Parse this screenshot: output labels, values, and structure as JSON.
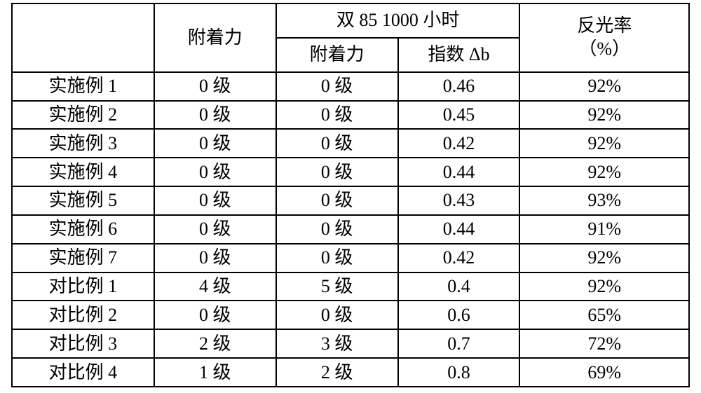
{
  "headers": {
    "adhesion": "附着力",
    "condition": "双 85 1000 小时",
    "sub_adhesion": "附着力",
    "sub_index": "指数 Δb",
    "reflectivity_l1": "反光率",
    "reflectivity_l2": "（%）"
  },
  "rows": [
    {
      "label": "实施例 1",
      "adh": "0 级",
      "sub_adh": "0 级",
      "idx": "0.46",
      "refl": "92%"
    },
    {
      "label": "实施例 2",
      "adh": "0 级",
      "sub_adh": "0 级",
      "idx": "0.45",
      "refl": "92%"
    },
    {
      "label": "实施例 3",
      "adh": "0 级",
      "sub_adh": "0 级",
      "idx": "0.42",
      "refl": "92%"
    },
    {
      "label": "实施例 4",
      "adh": "0 级",
      "sub_adh": "0 级",
      "idx": "0.44",
      "refl": "92%"
    },
    {
      "label": "实施例 5",
      "adh": "0 级",
      "sub_adh": "0 级",
      "idx": "0.43",
      "refl": "93%"
    },
    {
      "label": "实施例 6",
      "adh": "0 级",
      "sub_adh": "0 级",
      "idx": "0.44",
      "refl": "91%"
    },
    {
      "label": "实施例 7",
      "adh": "0 级",
      "sub_adh": "0 级",
      "idx": "0.42",
      "refl": "92%"
    },
    {
      "label": "对比例 1",
      "adh": "4 级",
      "sub_adh": "5 级",
      "idx": "0.4",
      "refl": "92%"
    },
    {
      "label": "对比例 2",
      "adh": "0 级",
      "sub_adh": "0 级",
      "idx": "0.6",
      "refl": "65%"
    },
    {
      "label": "对比例 3",
      "adh": "2 级",
      "sub_adh": "3 级",
      "idx": "0.7",
      "refl": "72%"
    },
    {
      "label": "对比例 4",
      "adh": "1 级",
      "sub_adh": "2 级",
      "idx": "0.8",
      "refl": "69%"
    }
  ],
  "style": {
    "border_color": "#000000",
    "text_color": "#000000",
    "background_color": "#ffffff",
    "font_size_pt": 20,
    "col_widths_pct": [
      21,
      18,
      18,
      18,
      25
    ]
  }
}
